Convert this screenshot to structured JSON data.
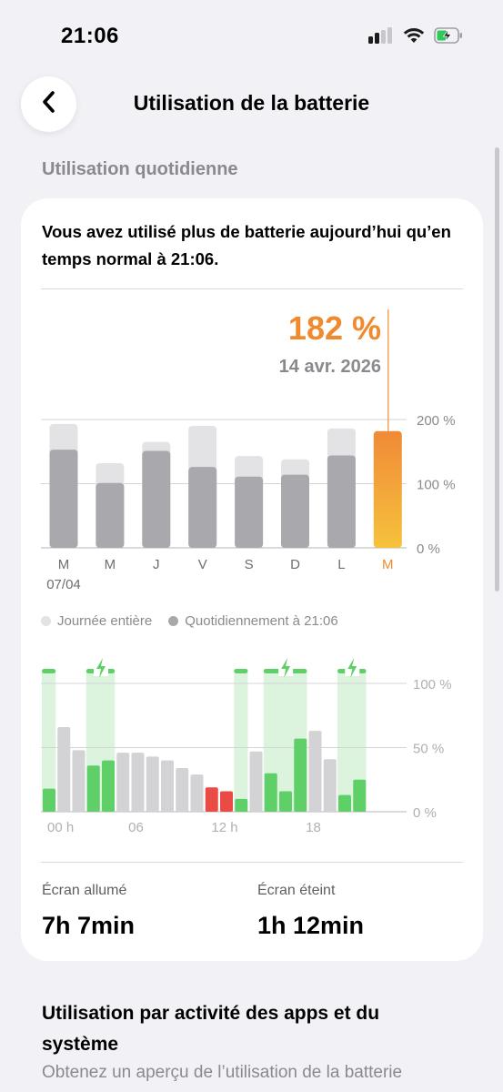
{
  "status_bar": {
    "time": "21:06",
    "icons": [
      "cellular-signal-icon",
      "wifi-icon",
      "battery-charging-icon"
    ]
  },
  "nav": {
    "back_icon": "chevron-left-icon",
    "title": "Utilisation de la batterie"
  },
  "section_daily_label": "Utilisation quotidienne",
  "card": {
    "headline": "Vous avez utilisé plus de batterie aujourd’hui qu’en temps normal à 21:06.",
    "selected_value": "182 %",
    "selected_date": "14 avr. 2026",
    "legend": [
      {
        "label": "Journée entière",
        "color": "#e3e3e5"
      },
      {
        "label": "Quotidiennement à 21:06",
        "color": "#a9a9ad"
      }
    ],
    "screen_on_label": "Écran allumé",
    "screen_on_value": "7h 7min",
    "screen_off_label": "Écran éteint",
    "screen_off_value": "1h 12min"
  },
  "section_apps": {
    "title": "Utilisation par activité des apps et du système",
    "text": "Obtenez un aperçu de l’utilisation de la batterie"
  },
  "colors": {
    "accent_orange": "#f08a2e",
    "bar_gray_light": "#e3e3e5",
    "bar_gray_dark": "#a9a9ad",
    "battery_green": "#5fd068",
    "battery_red": "#eb4b45",
    "charging_band": "#dcf3de"
  },
  "chart_data": [
    {
      "type": "bar",
      "categories": [
        "M",
        "M",
        "J",
        "V",
        "S",
        "D",
        "L",
        "M"
      ],
      "x_sublabel_first": "07/04",
      "series": [
        {
          "name": "Journée entière",
          "values": [
            193,
            132,
            165,
            190,
            143,
            138,
            186,
            180
          ]
        },
        {
          "name": "Quotidiennement à 21:06",
          "values": [
            153,
            101,
            151,
            126,
            111,
            114,
            144,
            182
          ]
        }
      ],
      "highlight_index": 7,
      "yticks": [
        "0 %",
        "100 %",
        "200 %"
      ],
      "ylim": [
        0,
        200
      ]
    },
    {
      "type": "bar",
      "x_ticks": [
        "00 h",
        "06",
        "12 h",
        "18"
      ],
      "yticks": [
        "0 %",
        "50 %",
        "100 %"
      ],
      "ylim": [
        0,
        100
      ],
      "slots": 24,
      "values": [
        18,
        66,
        48,
        36,
        40,
        46,
        46,
        43,
        40,
        34,
        29,
        19,
        16,
        10,
        47,
        30,
        16,
        57,
        63,
        41,
        13,
        25
      ],
      "status": [
        "charging",
        "idle",
        "idle",
        "charging",
        "charging",
        "idle",
        "idle",
        "idle",
        "idle",
        "idle",
        "idle",
        "low",
        "low",
        "charging",
        "idle",
        "charging",
        "charging",
        "charging",
        "idle",
        "idle",
        "charging",
        "charging"
      ],
      "charging_ranges": [
        [
          0,
          1
        ],
        [
          3,
          5
        ],
        [
          13,
          14
        ],
        [
          15,
          18
        ],
        [
          20,
          22
        ]
      ],
      "charging_bolt_ranges": [
        [
          3,
          5
        ],
        [
          15,
          18
        ],
        [
          20,
          22
        ]
      ]
    }
  ]
}
